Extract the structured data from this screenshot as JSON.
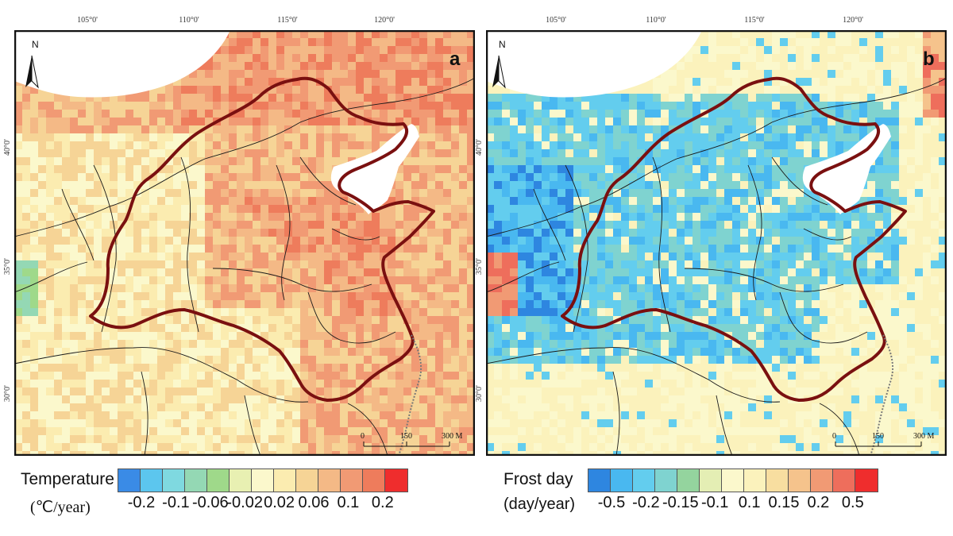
{
  "longitude_labels": [
    "105°0'",
    "110°0'",
    "115°0'",
    "120°0'"
  ],
  "latitude_labels": [
    "40°0'",
    "35°0'",
    "30°0'"
  ],
  "panels": [
    {
      "letter": "a",
      "north_label": "N",
      "scale": {
        "zero": "0",
        "mid": "150",
        "end": "300 M"
      },
      "legend": {
        "title": "Temperature",
        "unit": "(℃/year)",
        "colors": [
          "#3a8be6",
          "#5cc6ee",
          "#7fd9e0",
          "#94d8b4",
          "#9fd98a",
          "#e8f0b2",
          "#fbf8cc",
          "#fbecb0",
          "#f6d496",
          "#f4b986",
          "#f19a74",
          "#ee7c5c",
          "#ef2d2d"
        ],
        "ticks": [
          "-0.2",
          "-0.1",
          "-0.06",
          "-0.02",
          "0.02",
          "0.06",
          "0.1",
          "0.2"
        ]
      }
    },
    {
      "letter": "b",
      "north_label": "N",
      "scale": {
        "zero": "0",
        "mid": "150",
        "end": "300 M"
      },
      "legend": {
        "title": "Frost day",
        "unit": "(day/year)",
        "colors": [
          "#2e86e0",
          "#49b8f0",
          "#63cdee",
          "#7fd3d0",
          "#94d49e",
          "#e4eeb4",
          "#fbf8cc",
          "#fbf2bc",
          "#f8dea0",
          "#f5c38c",
          "#f19a74",
          "#ee6e5c",
          "#ef2d2d"
        ],
        "ticks": [
          "-0.5",
          "-0.2",
          "-0.15",
          "-0.1",
          "0.1",
          "0.15",
          "0.2",
          "0.5"
        ]
      }
    }
  ]
}
